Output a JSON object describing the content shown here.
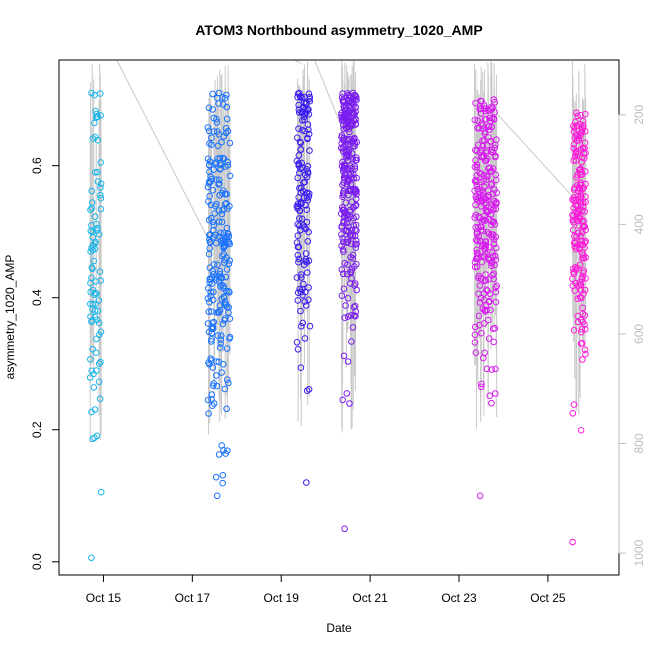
{
  "chart_data": {
    "type": "scatter",
    "title": "ATOM3 Northbound asymmetry_1020_AMP",
    "xlabel": "Date",
    "ylabel": "asymmetry_1020_AMP",
    "x_tick_labels": [
      "Oct 15",
      "Oct 17",
      "Oct 19",
      "Oct 21",
      "Oct 23",
      "Oct 25"
    ],
    "x_tick_days": [
      15,
      17,
      19,
      21,
      23,
      25
    ],
    "xlim_days": [
      14.0,
      26.6
    ],
    "y_ticks": [
      0.0,
      0.2,
      0.4,
      0.6
    ],
    "y_tick_labels": [
      "0.0",
      "0.2",
      "0.4",
      "0.6"
    ],
    "ylim": [
      -0.02,
      0.76
    ],
    "y2_ticks": [
      200,
      400,
      600,
      800,
      1000
    ],
    "y2_tick_labels": [
      "200",
      "400",
      "600",
      "800",
      "1000"
    ],
    "y2lim": [
      1040,
      100
    ],
    "y2_reversed": true,
    "y2_color": "#bdbdbd",
    "line_color": "#c8c8c8",
    "grid": false,
    "clusters": [
      {
        "name": "Oct 14-15",
        "color": "#1ab4e8",
        "x_start": 14.7,
        "x_end": 14.95,
        "y_min": 0.006,
        "y_max": 0.71,
        "y_mean": 0.43,
        "y_sd": 0.15,
        "n": 90,
        "line_top": 0.76,
        "line_bottom": 0.18
      },
      {
        "name": "Oct 17-18",
        "color": "#1a72ff",
        "x_start": 17.35,
        "x_end": 17.85,
        "y_min": 0.1,
        "y_max": 0.71,
        "y_mean": 0.47,
        "y_sd": 0.13,
        "n": 230,
        "line_top": 0.76,
        "line_bottom": 0.18
      },
      {
        "name": "Oct 19-20",
        "color": "#3a1cf0",
        "x_start": 19.35,
        "x_end": 19.65,
        "y_min": 0.12,
        "y_max": 0.71,
        "y_mean": 0.55,
        "y_sd": 0.12,
        "n": 140,
        "line_top": 0.76,
        "line_bottom": 0.2
      },
      {
        "name": "Oct 20-21",
        "color": "#7b1cf0",
        "x_start": 20.35,
        "x_end": 20.7,
        "y_min": 0.05,
        "y_max": 0.71,
        "y_mean": 0.58,
        "y_sd": 0.12,
        "n": 260,
        "line_top": 0.76,
        "line_bottom": 0.19
      },
      {
        "name": "Oct 23-24",
        "color": "#d81cf0",
        "x_start": 23.35,
        "x_end": 23.85,
        "y_min": 0.1,
        "y_max": 0.7,
        "y_mean": 0.53,
        "y_sd": 0.11,
        "n": 260,
        "line_top": 0.76,
        "line_bottom": 0.19
      },
      {
        "name": "Oct 25-26",
        "color": "#ff1ad9",
        "x_start": 25.55,
        "x_end": 25.85,
        "y_min": 0.03,
        "y_max": 0.68,
        "y_mean": 0.52,
        "y_sd": 0.11,
        "n": 180,
        "line_top": 0.76,
        "line_bottom": 0.22
      }
    ],
    "connector_lines": [
      {
        "x": [
          15.3,
          17.5
        ],
        "y": [
          0.76,
          0.47
        ]
      },
      {
        "x": [
          19.3,
          19.45
        ],
        "y": [
          0.76,
          0.755
        ]
      },
      {
        "x": [
          19.75,
          20.35
        ],
        "y": [
          0.76,
          0.66
        ]
      },
      {
        "x": [
          23.7,
          25.6
        ],
        "y": [
          0.69,
          0.55
        ]
      }
    ]
  }
}
